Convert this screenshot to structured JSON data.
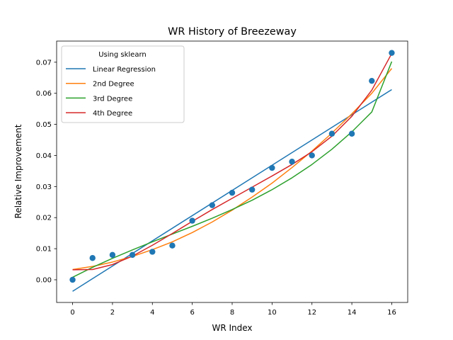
{
  "chart_data": {
    "type": "line",
    "title": "WR History of Breezeway",
    "xlabel": "WR Index",
    "ylabel": "Relative Improvement",
    "xlim": [
      -0.8,
      16.8
    ],
    "ylim": [
      -0.0073,
      0.0768
    ],
    "x_ticks": [
      0,
      2,
      4,
      6,
      8,
      10,
      12,
      14,
      16
    ],
    "x_tick_labels": [
      "0",
      "2",
      "4",
      "6",
      "8",
      "10",
      "12",
      "14",
      "16"
    ],
    "y_ticks": [
      0.0,
      0.01,
      0.02,
      0.03,
      0.04,
      0.05,
      0.06,
      0.07
    ],
    "y_tick_labels": [
      "0.00",
      "0.01",
      "0.02",
      "0.03",
      "0.04",
      "0.05",
      "0.06",
      "0.07"
    ],
    "grid": false,
    "legend": {
      "title": "Using sklearn",
      "placement": "top-left"
    },
    "scatter": {
      "color": "#1f77b4",
      "x": [
        0,
        1,
        2,
        3,
        4,
        5,
        6,
        7,
        8,
        9,
        10,
        11,
        12,
        13,
        14,
        15,
        16
      ],
      "y": [
        0.0,
        0.007,
        0.008,
        0.008,
        0.009,
        0.011,
        0.019,
        0.024,
        0.028,
        0.029,
        0.036,
        0.038,
        0.04,
        0.047,
        0.047,
        0.064,
        0.073
      ]
    },
    "series": [
      {
        "name": "Linear Regression",
        "color": "#1f77b4",
        "x": [
          0,
          16
        ],
        "y": [
          -0.0037,
          0.0612
        ]
      },
      {
        "name": "2nd Degree",
        "color": "#ff7f0e",
        "x": [
          0,
          1,
          2,
          3,
          4,
          5,
          6,
          7,
          8,
          9,
          10,
          11,
          12,
          13,
          14,
          15,
          16
        ],
        "y": [
          0.0033,
          0.0043,
          0.0057,
          0.0075,
          0.0097,
          0.0122,
          0.0152,
          0.0186,
          0.0224,
          0.0266,
          0.0311,
          0.0361,
          0.0414,
          0.0472,
          0.0534,
          0.06,
          0.068
        ]
      },
      {
        "name": "3rd Degree",
        "color": "#2ca02c",
        "x": [
          0,
          1,
          2,
          3,
          4,
          5,
          6,
          7,
          8,
          9,
          10,
          11,
          12,
          13,
          14,
          15,
          16
        ],
        "y": [
          0.0008,
          0.004,
          0.0069,
          0.0096,
          0.0122,
          0.0147,
          0.0172,
          0.0198,
          0.0226,
          0.0256,
          0.029,
          0.0328,
          0.0371,
          0.042,
          0.0476,
          0.054,
          0.0702
        ]
      },
      {
        "name": "4th Degree",
        "color": "#d62728",
        "x": [
          0,
          1,
          2,
          3,
          4,
          5,
          6,
          7,
          8,
          9,
          10,
          11,
          12,
          13,
          14,
          15,
          16
        ],
        "y": [
          0.0032,
          0.0033,
          0.0049,
          0.0076,
          0.0111,
          0.0149,
          0.0188,
          0.0226,
          0.0262,
          0.0298,
          0.0334,
          0.0371,
          0.0412,
          0.0462,
          0.0526,
          0.061,
          0.0728
        ]
      }
    ]
  }
}
